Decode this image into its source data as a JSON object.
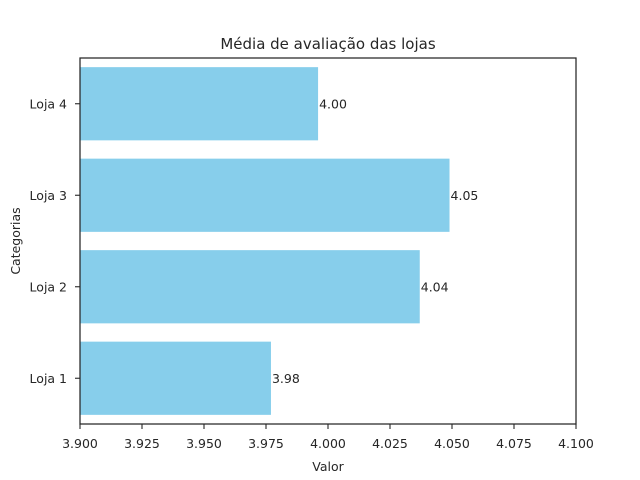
{
  "chart_data": {
    "type": "bar",
    "orientation": "horizontal",
    "title": "Média de avaliação das lojas",
    "xlabel": "Valor",
    "ylabel": "Categorias",
    "categories": [
      "Loja 1",
      "Loja 2",
      "Loja 3",
      "Loja 4"
    ],
    "values": [
      3.977,
      4.037,
      4.049,
      3.996
    ],
    "data_labels": [
      "3.98",
      "4.04",
      "4.05",
      "4.00"
    ],
    "xlim": [
      3.9,
      4.1
    ],
    "xticks": [
      3.9,
      3.925,
      3.95,
      3.975,
      4.0,
      4.025,
      4.05,
      4.075,
      4.1
    ],
    "xtick_labels": [
      "3.900",
      "3.925",
      "3.950",
      "3.975",
      "4.000",
      "4.025",
      "4.050",
      "4.075",
      "4.100"
    ],
    "grid": false,
    "legend": "none",
    "colors": {
      "bar": "#87ceeb",
      "axis": "#262626",
      "text": "#262626"
    }
  }
}
